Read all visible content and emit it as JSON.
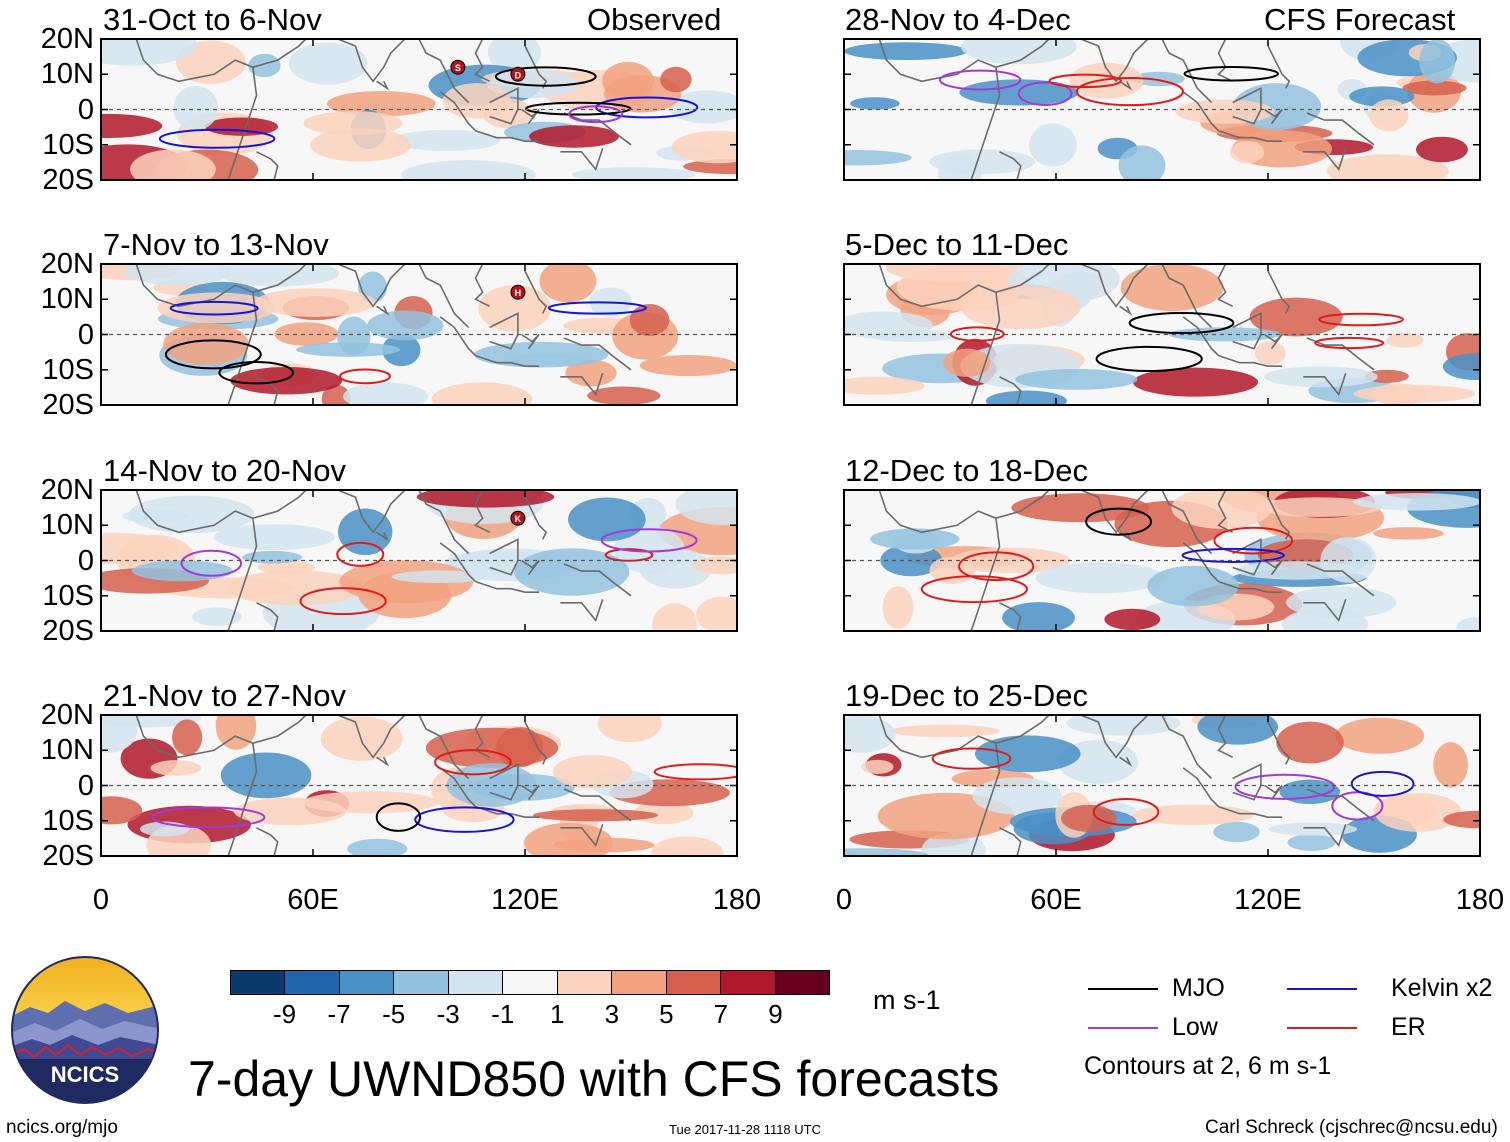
{
  "figure_title": "7-day UWND850 with CFS forecasts",
  "footer": {
    "website": "ncics.org/mjo",
    "timestamp": "Tue 2017-11-28 1118 UTC",
    "author": "Carl Schreck (cjschrec@ncsu.edu)"
  },
  "logo": {
    "text": "NCICS"
  },
  "units": "m s-1",
  "colorbar": {
    "labels": [
      "-9",
      "-7",
      "-5",
      "-3",
      "-1",
      "1",
      "3",
      "5",
      "7",
      "9"
    ],
    "colors": [
      "#0b3a6e",
      "#1f66ad",
      "#4a91c5",
      "#93c2de",
      "#d2e4ef",
      "#f7f7f7",
      "#fbd2bd",
      "#f2a27f",
      "#d6604d",
      "#b2182b",
      "#67001f"
    ]
  },
  "legend": {
    "items": [
      {
        "label": "MJO",
        "color": "#000000"
      },
      {
        "label": "Kelvin x2",
        "color": "#1515d6"
      },
      {
        "label": "Low",
        "color": "#a23ad8"
      },
      {
        "label": "ER",
        "color": "#e01b1b"
      }
    ],
    "note": "Contours at 2, 6 m s-1"
  },
  "chart_data": {
    "type": "heatmap",
    "variable": "850-hPa zonal wind anomaly (UWND850)",
    "x_range": [
      0,
      180
    ],
    "y_range": [
      -20,
      20
    ],
    "x_ticks": [
      "0",
      "60E",
      "120E",
      "180"
    ],
    "y_ticks": [
      "20N",
      "10N",
      "0",
      "10S",
      "20S"
    ],
    "columns": [
      {
        "header": "Observed",
        "panels": [
          {
            "title": "31-Oct to 6-Nov",
            "storms": [
              "S",
              "D"
            ]
          },
          {
            "title": "7-Nov to 13-Nov",
            "storms": [
              "H"
            ]
          },
          {
            "title": "14-Nov to 20-Nov",
            "storms": [
              "K"
            ]
          },
          {
            "title": "21-Nov to 27-Nov",
            "storms": []
          }
        ]
      },
      {
        "header": "CFS Forecast",
        "panels": [
          {
            "title": "28-Nov to 4-Dec",
            "storms": []
          },
          {
            "title": "5-Dec to 11-Dec",
            "storms": []
          },
          {
            "title": "12-Dec to 18-Dec",
            "storms": []
          },
          {
            "title": "19-Dec to 25-Dec",
            "storms": []
          }
        ]
      }
    ]
  }
}
